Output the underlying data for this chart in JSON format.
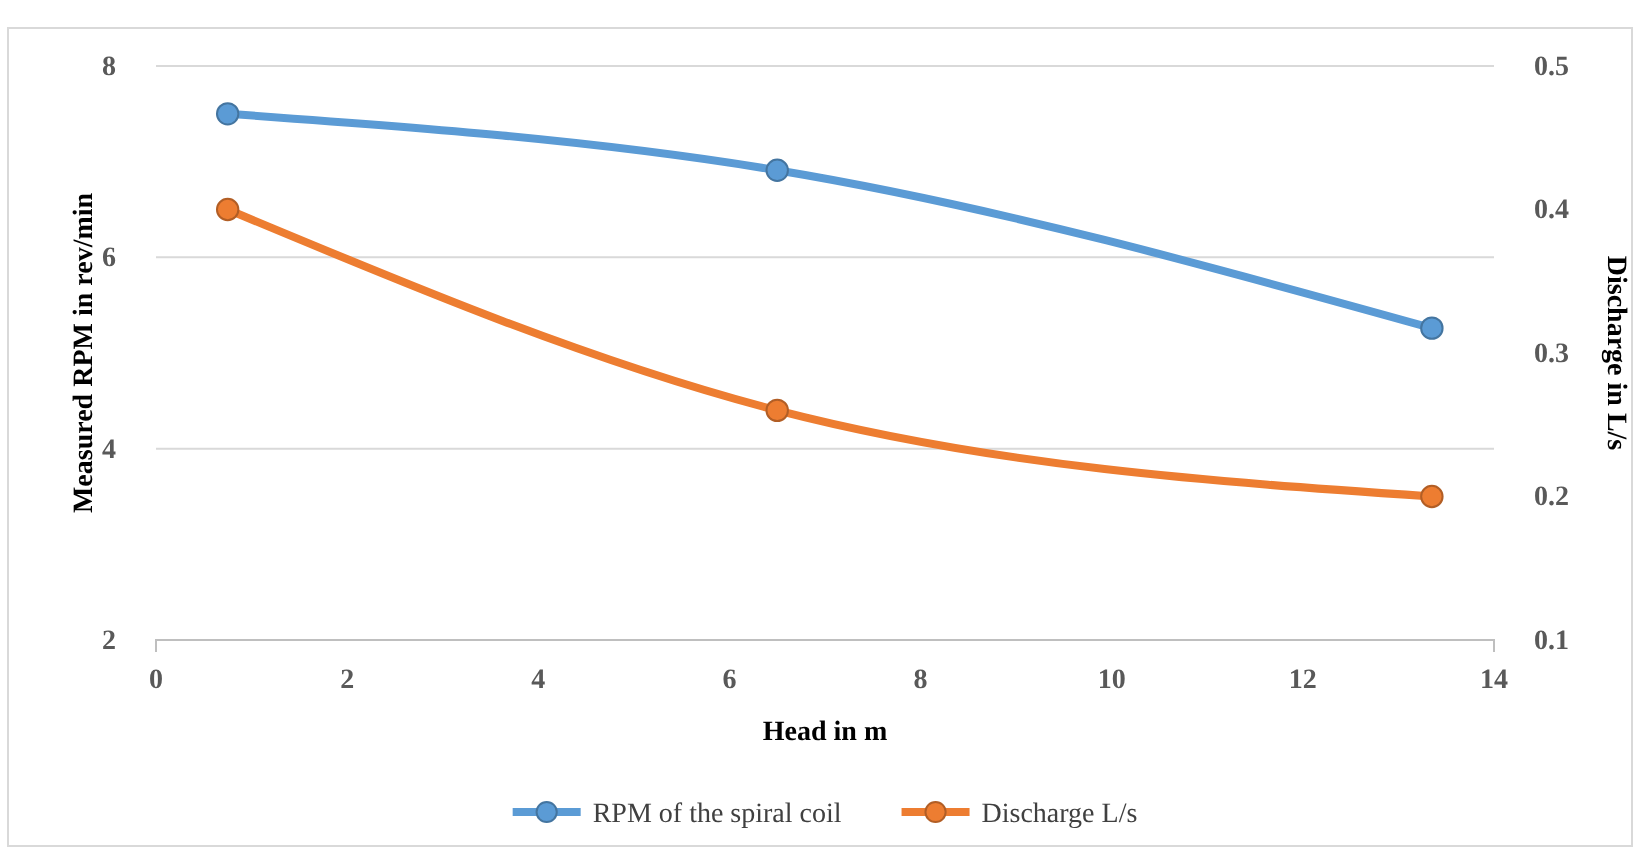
{
  "chart_data": {
    "type": "line",
    "xlabel": "Head in m",
    "ylabel": "Measured RPM in rev/min",
    "y2label": "Discharge in L/s",
    "x": [
      0.75,
      6.5,
      13.35
    ],
    "series": [
      {
        "name": "RPM of the spiral coil",
        "color": "#5b9bd5",
        "values": [
          7.5,
          6.91,
          5.26
        ]
      },
      {
        "name": "Discharge L/s",
        "color": "#ed7d31",
        "values": [
          0.4,
          0.26,
          0.2
        ],
        "axis": "y2"
      }
    ],
    "xlim": [
      0,
      14
    ],
    "xticks": [
      0,
      2,
      4,
      6,
      8,
      10,
      12,
      14
    ],
    "ylim": [
      2,
      8
    ],
    "yticks": [
      2,
      4,
      6,
      8
    ],
    "y2lim": [
      0.1,
      0.5
    ],
    "y2ticks": [
      0.1,
      0.2,
      0.3,
      0.4,
      0.5
    ],
    "grid": "y",
    "legend": "bottom",
    "marker": "circle",
    "line_style": "solid"
  }
}
